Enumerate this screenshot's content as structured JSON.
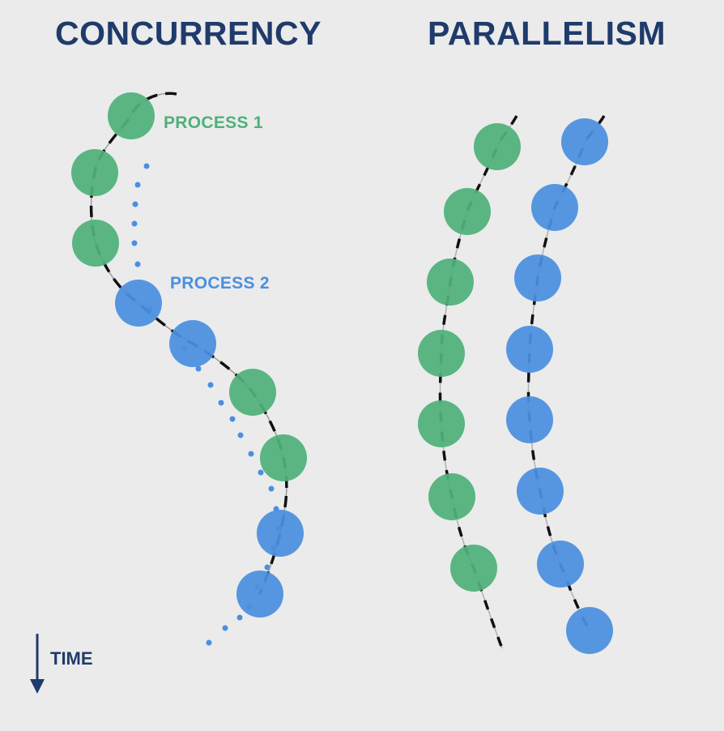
{
  "titles": {
    "concurrency": "CONCURRENCY",
    "parallelism": "PARALLELISM"
  },
  "labels": {
    "process1": "PROCESS 1",
    "process2": "PROCESS 2",
    "time": "TIME"
  },
  "colors": {
    "process1": "#4fb07a",
    "process2": "#4a8fe0",
    "title": "#1f3b6b",
    "thread": "#111111"
  },
  "concurrency_sequence": [
    "process1",
    "process1",
    "process1",
    "process2",
    "process2",
    "process1",
    "process1",
    "process2",
    "process2"
  ],
  "parallelism_columns": [
    {
      "process": "process1",
      "steps": 7
    },
    {
      "process": "process2",
      "steps": 8
    }
  ]
}
